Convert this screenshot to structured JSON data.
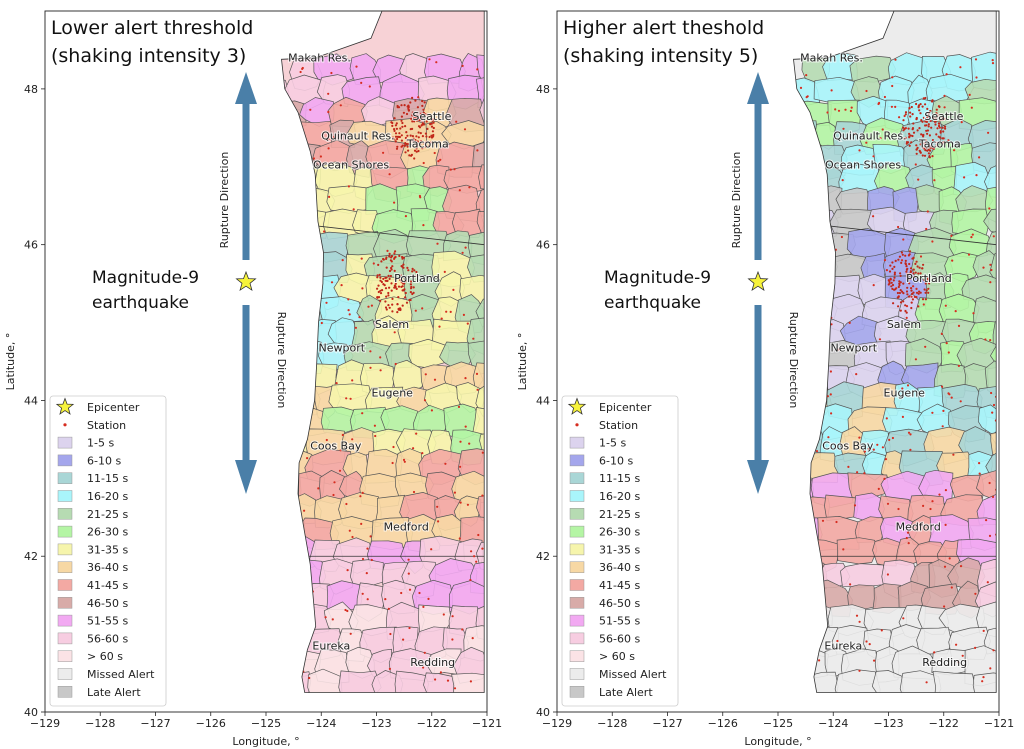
{
  "panels": [
    {
      "title_line1": "Lower alert threshold",
      "title_line2": "(shaking intensity 3)",
      "quake_line1": "Magnitude-9",
      "quake_line2": "earthquake",
      "rupture_up": "Rupture Direction",
      "rupture_down": "Rupture Direction",
      "south_fill": "#f7d2d6"
    },
    {
      "title_line1": "Higher alert theshold",
      "title_line2": "(shaking intensity 5)",
      "quake_line1": "Magnitude-9",
      "quake_line2": "earthquake",
      "rupture_up": "Rupture Direction",
      "rupture_down": "Rupture Direction",
      "south_fill": "#ececec"
    }
  ],
  "axes": {
    "xlabel": "Longitude, °",
    "ylabel": "Latitude, °",
    "xticks": [
      "−129",
      "−128",
      "−127",
      "−126",
      "−125",
      "−124",
      "−123",
      "−122",
      "−121"
    ],
    "xtick_values": [
      -129,
      -128,
      -127,
      -126,
      -125,
      -124,
      -123,
      -122,
      -121
    ],
    "yticks": [
      "40",
      "42",
      "44",
      "46",
      "48"
    ],
    "ytick_values": [
      40,
      42,
      44,
      46,
      48
    ],
    "xlim": [
      -129,
      -121
    ],
    "ylim": [
      40,
      49
    ]
  },
  "cities": [
    {
      "name": "Makah Res.",
      "lon": -124.6,
      "lat": 48.35
    },
    {
      "name": "Seattle",
      "lon": -122.35,
      "lat": 47.6
    },
    {
      "name": "Quinault Res.",
      "lon": -124.0,
      "lat": 47.35
    },
    {
      "name": "Tacoma",
      "lon": -122.45,
      "lat": 47.25
    },
    {
      "name": "Ocean Shores",
      "lon": -124.15,
      "lat": 46.98
    },
    {
      "name": "Portland",
      "lon": -122.68,
      "lat": 45.52
    },
    {
      "name": "Salem",
      "lon": -123.03,
      "lat": 44.93
    },
    {
      "name": "Newport",
      "lon": -124.05,
      "lat": 44.63
    },
    {
      "name": "Eugene",
      "lon": -123.09,
      "lat": 44.05
    },
    {
      "name": "Coos Bay",
      "lon": -124.2,
      "lat": 43.37
    },
    {
      "name": "Medford",
      "lon": -122.87,
      "lat": 42.33
    },
    {
      "name": "Eureka",
      "lon": -124.16,
      "lat": 40.8
    },
    {
      "name": "Redding",
      "lon": -122.39,
      "lat": 40.59
    }
  ],
  "epicenter": {
    "lon": -125.35,
    "lat": 45.6
  },
  "legend": [
    {
      "label": "Epicenter",
      "kind": "star",
      "color": "#f7f33b"
    },
    {
      "label": "Station",
      "kind": "dot",
      "color": "#d62d20"
    },
    {
      "label": "1-5 s",
      "kind": "box",
      "color": "#dcd3ee"
    },
    {
      "label": "6-10 s",
      "kind": "box",
      "color": "#a4a6ec"
    },
    {
      "label": "11-15 s",
      "kind": "box",
      "color": "#a9d6d6"
    },
    {
      "label": "16-20 s",
      "kind": "box",
      "color": "#a9f5fb"
    },
    {
      "label": "21-25 s",
      "kind": "box",
      "color": "#b6dbb2"
    },
    {
      "label": "26-30 s",
      "kind": "box",
      "color": "#b4f5a4"
    },
    {
      "label": "31-35 s",
      "kind": "box",
      "color": "#f6f5ac"
    },
    {
      "label": "36-40 s",
      "kind": "box",
      "color": "#f7d8a4"
    },
    {
      "label": "41-45 s",
      "kind": "box",
      "color": "#f3a9a3"
    },
    {
      "label": "46-50 s",
      "kind": "box",
      "color": "#d8aba8"
    },
    {
      "label": "51-55 s",
      "kind": "box",
      "color": "#f2a9f2"
    },
    {
      "label": "56-60 s",
      "kind": "box",
      "color": "#f7cde1"
    },
    {
      "label": "> 60 s",
      "kind": "box",
      "color": "#fbe3e6"
    },
    {
      "label": "Missed Alert",
      "kind": "box",
      "color": "#ececec"
    },
    {
      "label": "Late Alert",
      "kind": "box",
      "color": "#c8c8c8"
    }
  ],
  "colors": {
    "arrow": "#4a7fa8",
    "land_border": "#555555"
  }
}
